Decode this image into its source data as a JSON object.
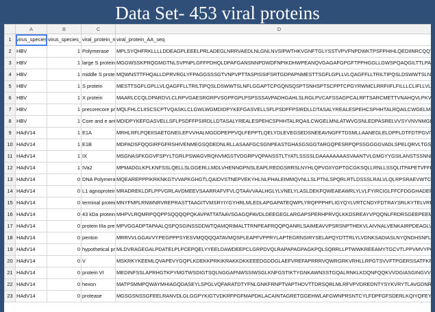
{
  "title": "Data Set- 453 viral proteins",
  "columns": [
    "A",
    "B",
    "C",
    "D"
  ],
  "rows": [
    {
      "n": "1",
      "a": "virus_species",
      "b": "virus_species_or",
      "c": "viral_protein_nam",
      "d": "viral_protein_AA_seq"
    },
    {
      "n": "2",
      "a": "HBV",
      "b": "1",
      "c": "Polymerase",
      "d": "MPLSYQHFRKLLLLDDEAGPLEEELPRLADEGLNRRVAEDLNLGNLNVSIPWTHKVGNFTGLYSSTVPVFNPDWKTPSFPHIHLQEDIINRCQQYVGPLTVNEKRRLKLIPARFYPNLTKYLPLDKGIKPY"
    },
    {
      "n": "3",
      "a": "HBV",
      "b": "1",
      "c": "large S protein",
      "d": "MGGWSSKPRQGMGTNLSVPNPLGFFPDHQLDPAFGANSNNPDWDFNPIKDHWPEANQVGAGAFGPGFTPPHGGLLGWSPQAQGILTTLPAAPPPASTNRQSGRQPTPISPPLRDSHPQAMQWNSTTF"
    },
    {
      "n": "4",
      "a": "HBV",
      "b": "1",
      "c": "middle S protein",
      "d": "MQWNSTTFHQALLDPRVRGLYFPAGGSSSGTVNPVPTTASPISSIFSRTGDPAPNMESTTSGFLGPLLVLQAGFFLLTRILTIPQSLDSWWTSLNFLGGAPTCPGQNSQSPTSNHSPTSCPPICPGYRW"
    },
    {
      "n": "5",
      "a": "HBV",
      "b": "1",
      "c": "S protein",
      "d": "MESTTSGFLGPLLVLQAGFFLLTRILTIPQSLDSWWTSLNFLGGAPTCPGQNSQSPTSNHSPTSCPPTCPGYRWMCLRRFIIFLFILLLCLIFLLVLLDYQGMLPVCPLLPGTSTTSTGPCKTCTIPAQG"
    },
    {
      "n": "6",
      "a": "HBV",
      "b": "1",
      "c": "X protein",
      "d": "MAARLCCQLDPARDVLCLRPVGAESRGRPVSGPFGPLPSPSSSAVPADHGAHLSLRGLPVCAFSSAGPCALRFTSARCMETTVNAHQVLPKVLHKRTLGLSAMSTTDLEAYFKDCLFKDWEELGEEIRLK"
    },
    {
      "n": "7",
      "a": "HBV",
      "b": "1",
      "c": "precorecore prot",
      "d": "MQLFHLCLIISCSCPTVQASKLCLGWLWGMDIDPYKEFGASVELLSFLPSDFFPSIRDLLDTASALYREALESPEHCSPHHTALRQAILCWGELMNLATWVGSNLEDPASRELVVSYVNVNMGLKIRQLLW"
    },
    {
      "n": "8",
      "a": "HBV",
      "b": "1",
      "c": "Core and e antig",
      "d": "MDIDPYKEFGASVELLSFLPSDFFPSIRDLLDTASALYREALESPEHCSPHHTALRQAILCWGELMNLATWVGSNLEDPASRELVVSYVNVNMGLKIRQLLWFHISCLTFGRETVLEYLVSFGVWIRTPP"
    },
    {
      "n": "9",
      "a": "HAdV14",
      "b": "1",
      "c": "E1A",
      "d": "MRHLRFLPQEIISAETGNEILEFVVHALMGDDPEPPVQLFEPPTLQELYDLEVEGSEDSNEEAVNGFFTDSMLLAANEGLELDPPLDTFDTPGVIVESGTGVRKLPDLGSVDCDLHCYEDGFPPSDEEDHE"
    },
    {
      "n": "10",
      "a": "HAdV14",
      "b": "1",
      "c": "E1B",
      "d": "MDPADSFQQGIRFGFRSHIVENMEGSQDEDNLRLLASAAFGCSGNPEASTGHASGSGGTARGQPESRPQPSSGGGGVADLSPELQRVLTGSTSTGRDRGVKRERASSGTDARSELALSLMSRRRPETIWW"
    },
    {
      "n": "11",
      "a": "HAdV14",
      "b": "1",
      "c": "IX",
      "d": "MSGNASFKGGVFSPYLTGRLPSWAGVRQNVMGSTVDGRPVQPANSSTLTYATLSSSSLDAAAAAAAASVAANTVLGMGYYGSILANSTSSNNPSTLTQDKLLVLLAQLEALTQRLGELSQQVAQLREQ"
    },
    {
      "n": "12",
      "a": "HAdV14",
      "b": "1",
      "c": "IVa2",
      "d": "MPMADGLKPLKNFSSLQELLSLGGERLLMDLVHENNGPNSLEAPLREDGSRRSLNYHLQPVGIIYGPTGCGKSQLLRNLLSSQLITPAPETVFFIAPQVDMIPPSELKAWEMQICEGNYAPGPDGTIIPQ"
    },
    {
      "n": "13",
      "a": "HAdV14",
      "b": "0",
      "c": "DNA Polymerase",
      "d": "MQEAREPPPIKRKNKGTVVAPKGHGTLQAIDVSTNEPVEKYHLNLPHALEIMMQVNLLSLPTNLSPQRLRTLDSSSLRALVLQLRPSRAEVWTCLPRGLVSMTTIETEDEQANTEQLQKKLEEAIEGG"
    },
    {
      "n": "14",
      "a": "HAdV14",
      "b": "0",
      "c": "L1 agnoprotein",
      "d": "MRADREKLDFLPPVGRLAVDMEEVSAARRAFVFVLQTAAVVAALHGLYLVNELYLASLDEKFQWEAEAWRLYLVLFYIRCIGLFFCFDGGHADEPPREASPDLGAGGAELRRSGAEPGAASSSGGGEAVG"
    },
    {
      "n": "15",
      "a": "HAdV14",
      "b": "0",
      "c": "terminal protein p",
      "d": "MNYFMPLRNWNRVREPRASTTAAGITVMSRYIYGYHRLMLEDLAPGAPATEQWPLYRQPPPHFLIGYQYLVRTCNDYFDTRAYSRLKYTELVRPGHQTVNWSVMANCAYTINTGAYHRFVDLDDFQST"
    },
    {
      "n": "16",
      "a": "HAdV14",
      "b": "0",
      "c": "43 kDa protein",
      "d": "MHPVLRQMRPQQPPSQQQQPQKAVPATTATAAVSGAGQPAVDLDEEGEGLARGAPSPERHPRVQLKKDSREAYVPQQNLFRDRSGEEPEEMRASRFHAGRELRRGLDRKRVLRDEDFEADELTGISPA"
    },
    {
      "n": "17",
      "a": "HAdV14",
      "b": "0",
      "c": "protein IIIa precu",
      "d": "MPVGGADPTAPAALQSPQSGINSSDDWTQAMQRIMALTTRNPEAFRQQPQANRLSAIMEAVVPSRSNPTHEKVLAIVNALVENKAIRPDEAGLVYNALLERVARYNSSNVQTNLDRMVTDVREAVSQRER"
    },
    {
      "n": "18",
      "a": "HAdV14",
      "b": "0",
      "c": "penton",
      "d": "MRRVVLGGAVVYPEGPPPSYESVMQQQQATAVMQSPLEAPFVPPRYLAPTEGRNSIRYSELAPQYDTTRLYLVDNKSADIASLNYQNDHSNFLTTVVQNNDFTPTEASTQTINFDERSRWGGQLKTIMH"
    },
    {
      "n": "19",
      "a": "HAdV14",
      "b": "0",
      "c": "hypothetical prot",
      "d": "MLDVRAGEGALPDATELPLPCEPQELYYEELDAWDEEPCLGRPDVQLRAPAPAGPAGKPQLSQRRLLPTWWKREEAMYTGCVTLPPVMVYPCAPVPLALRRY"
    },
    {
      "n": "20",
      "a": "HAdV14",
      "b": "0",
      "c": "V",
      "d": "MSKRKYKEEMLQVAPEVYGQPLKDEKKPRKIKRAKKDKKEEEDGDDGLAEFVREFAPRRRVQWRGRKVRHLLRPGTSVVFTPGERSSATFKRSYDEVYGDDDILEQAADRLGEFAYGKRSRHRHGGSMT"
    },
    {
      "n": "21",
      "a": "HAdV14",
      "b": "0",
      "c": "protein VI",
      "d": "MEDINFSSLAPRHGTKPYMGTWSDIGTSQLNGGAFNWSSIWSGLKNFGSTIKTYGNKAWNSSTGQALRNKLKDQNFQQKVVDGIASGINGVVDLANQAVQKKINSRLDPPPATPGEMQVEEEIPPPEKRG"
    },
    {
      "n": "22",
      "a": "HAdV14",
      "b": "0",
      "c": "hexon",
      "d": "MATPSMMPQWAYMHIAGQDASEYLSPGLVQFARATDTYFNLGNKFRNPTVAPTHDVTTDRSQRLMLRFVPVDREDNTYSYKVRYTLAVGDNRVLDMASTFFDIRGVLDRGPSFKPYSGTAYNSLAPKGAP"
    },
    {
      "n": "23",
      "a": "HAdV14",
      "b": "0",
      "c": "protease",
      "d": "MGSGSNSSGFEELRANVDLGLGGPYKIGTVDKRFPGFMAPDKLACAINTAGRETGGEHWLAFGWNPRSNTCYLFDPFGFSDERLKQIYQFEYEGLLRRSALATKDRCITLEKSTQTVQGPRSAACGLFCC"
    }
  ]
}
